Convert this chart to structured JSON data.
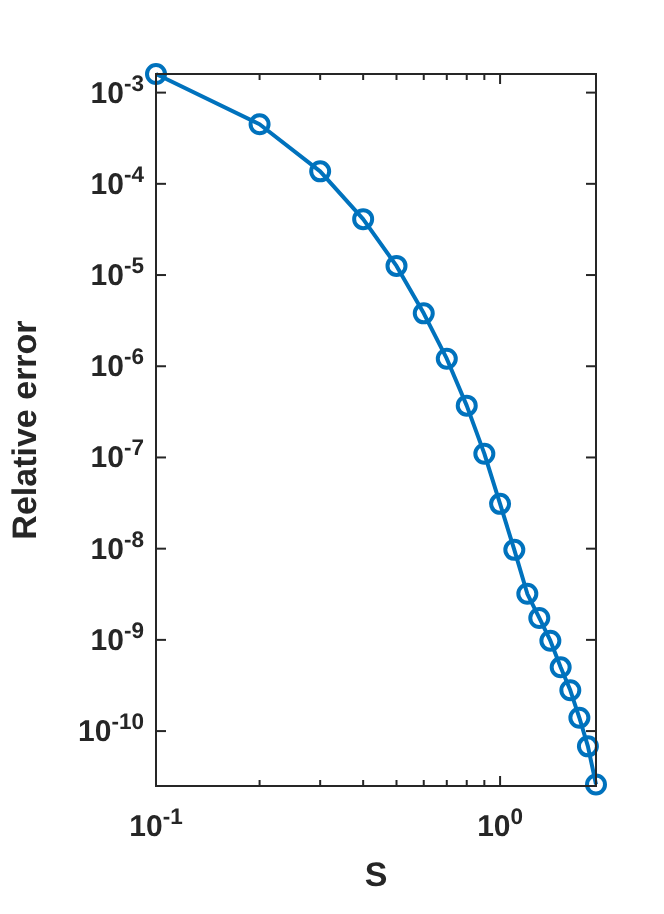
{
  "chart_data": {
    "type": "line",
    "xlabel": "S",
    "ylabel": "Relative error",
    "log": "xy",
    "marker": "circle",
    "line_style": "solid",
    "grid": false,
    "x": [
      0.1,
      0.2,
      0.3,
      0.4,
      0.5,
      0.6,
      0.7,
      0.8,
      0.9,
      1.0,
      1.1,
      1.2,
      1.3,
      1.4,
      1.5,
      1.6,
      1.7,
      1.8,
      1.9
    ],
    "series": [
      {
        "color": "#0072bd",
        "values": [
          0.0016,
          0.00045,
          0.000137,
          4.1e-05,
          1.26e-05,
          3.8e-06,
          1.21e-06,
          3.7e-07,
          1.1e-07,
          3.1e-08,
          9.7e-09,
          3.2e-09,
          1.74e-09,
          9.8e-10,
          5e-10,
          2.8e-10,
          1.4e-10,
          6.8e-11,
          2.6e-11
        ]
      }
    ],
    "xlim": [
      0.1,
      1.9
    ],
    "xticks": [
      {
        "value": 0.1,
        "label": "10$^{-1}$"
      },
      {
        "value": 0.2,
        "label": null
      },
      {
        "value": 0.3,
        "label": null
      },
      {
        "value": 0.4,
        "label": null
      },
      {
        "value": 0.5,
        "label": null
      },
      {
        "value": 0.6,
        "label": null
      },
      {
        "value": 0.7,
        "label": null
      },
      {
        "value": 0.8,
        "label": null
      },
      {
        "value": 0.9,
        "label": null
      },
      {
        "value": 1,
        "label": "10$^{0}$"
      }
    ],
    "ylim": [
      2.5e-11,
      0.0016
    ],
    "yticks": [
      {
        "value": 1e-10,
        "label": "10$^{-10}$"
      },
      {
        "value": 1e-09,
        "label": "10$^{-9}$"
      },
      {
        "value": 1e-08,
        "label": "10$^{-8}$"
      },
      {
        "value": 1e-07,
        "label": "10$^{-7}$"
      },
      {
        "value": 1e-06,
        "label": "10$^{-6}$"
      },
      {
        "value": 1e-05,
        "label": "10$^{-5}$"
      },
      {
        "value": 0.0001,
        "label": "10$^{-4}$"
      },
      {
        "value": 0.001,
        "label": "10$^{-3}$"
      }
    ]
  }
}
